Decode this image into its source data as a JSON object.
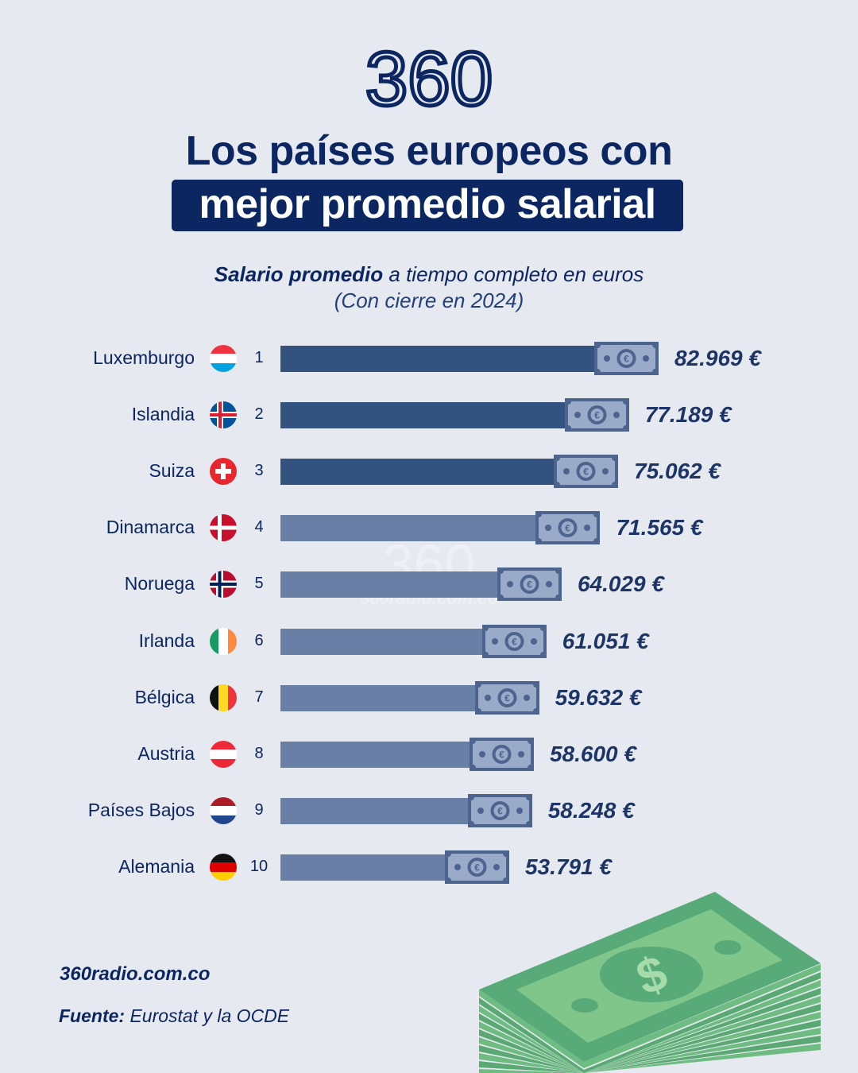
{
  "logo": "360",
  "title_line1": "Los países europeos con",
  "title_line2": "mejor promedio salarial",
  "subtitle_bold": "Salario promedio",
  "subtitle_rest": " a tiempo completo en euros",
  "subtitle_line2": "(Con cierre en 2024)",
  "watermark": {
    "logo": "360",
    "site": "360radio.com.co"
  },
  "footer": {
    "site": "360radio.com.co",
    "source_label": "Fuente:",
    "source_text": " Eurostat y la OCDE"
  },
  "colors": {
    "navy": "#0c2661",
    "bar_top3": "#34527f",
    "bar_rest": "#6a7fa6",
    "bill": "#9aabc9",
    "bill_border": "#4d648f",
    "background": "#e6e9f0",
    "money_green": "#7fc48a"
  },
  "chart_data": {
    "type": "bar",
    "orientation": "horizontal",
    "title": "Los países europeos con mejor promedio salarial",
    "subtitle": "Salario promedio a tiempo completo en euros (Con cierre en 2024)",
    "unit": "€",
    "categories": [
      "Luxemburgo",
      "Islandia",
      "Suiza",
      "Dinamarca",
      "Noruega",
      "Irlanda",
      "Bélgica",
      "Austria",
      "Países Bajos",
      "Alemania"
    ],
    "ranks": [
      "1",
      "2",
      "3",
      "4",
      "5",
      "6",
      "7",
      "8",
      "9",
      "10"
    ],
    "flags": [
      "lu",
      "is",
      "ch",
      "dk",
      "no",
      "ie",
      "be",
      "at",
      "nl",
      "de"
    ],
    "values": [
      82969,
      77189,
      75062,
      71565,
      64029,
      61051,
      59632,
      58600,
      58248,
      53791
    ],
    "labels": [
      "82.969 €",
      "77.189 €",
      "75.062 €",
      "71.565 €",
      "64.029 €",
      "61.051 €",
      "59.632 €",
      "58.600 €",
      "58.248 €",
      "53.791 €"
    ],
    "highlighted_top": 3
  }
}
